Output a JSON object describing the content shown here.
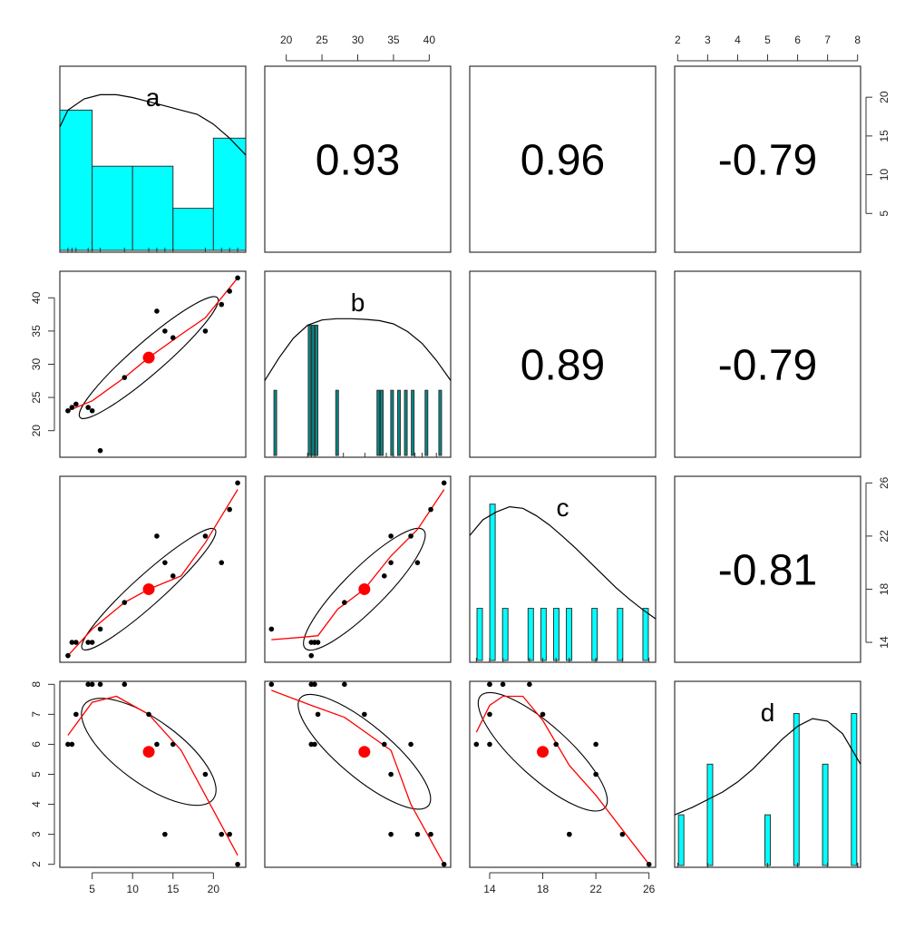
{
  "chart_data": {
    "type": "scatter",
    "variables": [
      "a",
      "b",
      "c",
      "d"
    ],
    "observations": {
      "a": [
        2,
        3,
        2.5,
        5,
        4.5,
        6,
        9,
        12,
        13,
        15,
        14,
        19,
        21,
        22,
        23
      ],
      "b": [
        23,
        24,
        23.5,
        23,
        23.5,
        17,
        28,
        31,
        38,
        34,
        35,
        35,
        39,
        41,
        43
      ],
      "c": [
        13,
        14,
        14,
        14,
        14,
        15,
        17,
        18,
        22,
        19,
        20,
        22,
        20,
        24,
        26
      ],
      "d": [
        6,
        7,
        6,
        8,
        8,
        8,
        8,
        7,
        6,
        6,
        3,
        5,
        3,
        3,
        2
      ]
    },
    "correlations": [
      {
        "pair": "a-b",
        "value": "0.93"
      },
      {
        "pair": "a-c",
        "value": "0.96"
      },
      {
        "pair": "a-d",
        "value": "-0.79"
      },
      {
        "pair": "b-c",
        "value": "0.89"
      },
      {
        "pair": "b-d",
        "value": "-0.79"
      },
      {
        "pair": "c-d",
        "value": "-0.81"
      }
    ],
    "histograms": {
      "a": {
        "bins": [
          [
            0,
            5,
            5
          ],
          [
            5,
            10,
            3
          ],
          [
            10,
            15,
            3
          ],
          [
            15,
            20,
            1.5
          ],
          [
            20,
            25,
            4
          ]
        ],
        "ymax": 6.5,
        "xlim": [
          1,
          24
        ]
      },
      "b": {
        "bars": [
          [
            18,
            1
          ],
          [
            23,
            2
          ],
          [
            23.5,
            2
          ],
          [
            24,
            2
          ],
          [
            27,
            1
          ],
          [
            33,
            1
          ],
          [
            33.5,
            1
          ],
          [
            35,
            1
          ],
          [
            36,
            1
          ],
          [
            37,
            1
          ],
          [
            38,
            1
          ],
          [
            40,
            1
          ],
          [
            42,
            1
          ]
        ],
        "ymax": 2.8,
        "xlim": [
          17,
          43
        ]
      },
      "c": {
        "bars": [
          [
            13,
            1
          ],
          [
            14,
            3
          ],
          [
            15,
            1
          ],
          [
            17,
            1
          ],
          [
            18,
            1
          ],
          [
            19,
            1
          ],
          [
            20,
            1
          ],
          [
            22,
            1
          ],
          [
            24,
            1
          ],
          [
            26,
            1
          ]
        ],
        "ymax": 3.5,
        "xlim": [
          12.5,
          26.5
        ]
      },
      "d": {
        "bars": [
          [
            2,
            1
          ],
          [
            3,
            2
          ],
          [
            5,
            1
          ],
          [
            6,
            3
          ],
          [
            7,
            2
          ],
          [
            8,
            3
          ]
        ],
        "ymax": 3.6,
        "xlim": [
          1.9,
          8.1
        ]
      }
    },
    "density_curves": {
      "a": [
        [
          1,
          4.4
        ],
        [
          2,
          5.0
        ],
        [
          4,
          5.4
        ],
        [
          6,
          5.55
        ],
        [
          8,
          5.55
        ],
        [
          10,
          5.45
        ],
        [
          12,
          5.3
        ],
        [
          14,
          5.15
        ],
        [
          16,
          5.0
        ],
        [
          18,
          4.85
        ],
        [
          20,
          4.5
        ],
        [
          22,
          4.0
        ],
        [
          24,
          3.4
        ]
      ],
      "b": [
        [
          17,
          1.15
        ],
        [
          19,
          1.5
        ],
        [
          21,
          1.8
        ],
        [
          23,
          2.0
        ],
        [
          25,
          2.08
        ],
        [
          27,
          2.1
        ],
        [
          29,
          2.1
        ],
        [
          31,
          2.09
        ],
        [
          33,
          2.07
        ],
        [
          35,
          2.02
        ],
        [
          37,
          1.9
        ],
        [
          39,
          1.72
        ],
        [
          41,
          1.46
        ],
        [
          43,
          1.15
        ]
      ],
      "c": [
        [
          12.5,
          2.4
        ],
        [
          13.5,
          2.7
        ],
        [
          14.5,
          2.85
        ],
        [
          15.5,
          2.95
        ],
        [
          16.5,
          2.92
        ],
        [
          17.5,
          2.78
        ],
        [
          18.5,
          2.6
        ],
        [
          19.5,
          2.38
        ],
        [
          20.5,
          2.15
        ],
        [
          21.5,
          1.9
        ],
        [
          22.5,
          1.65
        ],
        [
          23.5,
          1.4
        ],
        [
          24.5,
          1.18
        ],
        [
          25.5,
          0.98
        ],
        [
          26.5,
          0.8
        ]
      ],
      "d": [
        [
          1.9,
          1.0
        ],
        [
          2.5,
          1.15
        ],
        [
          3.0,
          1.3
        ],
        [
          3.5,
          1.45
        ],
        [
          4.0,
          1.65
        ],
        [
          4.5,
          1.9
        ],
        [
          5.0,
          2.2
        ],
        [
          5.5,
          2.5
        ],
        [
          6.0,
          2.75
        ],
        [
          6.5,
          2.9
        ],
        [
          7.0,
          2.85
        ],
        [
          7.5,
          2.6
        ],
        [
          8.1,
          2.0
        ]
      ]
    },
    "loess": {
      "a-b": [
        [
          2,
          23
        ],
        [
          5,
          24.5
        ],
        [
          9,
          28
        ],
        [
          12,
          31
        ],
        [
          16,
          34.5
        ],
        [
          19,
          37
        ],
        [
          23,
          43
        ]
      ],
      "a-c": [
        [
          2,
          13
        ],
        [
          5,
          15
        ],
        [
          9,
          17
        ],
        [
          12,
          18
        ],
        [
          16,
          19
        ],
        [
          19,
          21.5
        ],
        [
          23,
          25.5
        ]
      ],
      "a-d": [
        [
          2,
          6.3
        ],
        [
          5,
          7.4
        ],
        [
          8,
          7.6
        ],
        [
          12,
          7.0
        ],
        [
          16,
          5.8
        ],
        [
          19,
          4.3
        ],
        [
          23,
          2.3
        ]
      ],
      "b-c": [
        [
          17,
          14.2
        ],
        [
          22,
          14.4
        ],
        [
          24,
          14.5
        ],
        [
          27,
          16.5
        ],
        [
          31,
          18
        ],
        [
          35,
          20.5
        ],
        [
          39,
          22.5
        ],
        [
          43,
          25.5
        ]
      ],
      "b-d": [
        [
          17,
          7.8
        ],
        [
          23,
          7.3
        ],
        [
          28,
          6.9
        ],
        [
          35,
          5.8
        ],
        [
          38,
          4.0
        ],
        [
          43,
          2.0
        ]
      ],
      "c-d": [
        [
          13,
          6.4
        ],
        [
          14,
          7.3
        ],
        [
          15,
          7.6
        ],
        [
          16.5,
          7.6
        ],
        [
          18,
          6.8
        ],
        [
          20,
          5.3
        ],
        [
          22,
          4.3
        ],
        [
          26,
          2.0
        ]
      ]
    },
    "centroids": {
      "a": 12,
      "b": 31,
      "c": 18,
      "d": 5.75
    },
    "ellipses": {
      "a-b": {
        "cx": 12,
        "cy": 31,
        "angle_deg": -41,
        "rx_frac": 0.49,
        "ry_frac": 0.085
      },
      "a-c": {
        "cx": 12,
        "cy": 18,
        "angle_deg": -42,
        "rx_frac": 0.48,
        "ry_frac": 0.08
      },
      "a-d": {
        "cx": 12,
        "cy": 5.75,
        "angle_deg": 36,
        "rx_frac": 0.43,
        "ry_frac": 0.17
      },
      "b-c": {
        "cx": 31,
        "cy": 18,
        "angle_deg": -45,
        "rx_frac": 0.45,
        "ry_frac": 0.11
      },
      "b-d": {
        "cx": 31,
        "cy": 5.75,
        "angle_deg": 40,
        "rx_frac": 0.45,
        "ry_frac": 0.14
      },
      "c-d": {
        "cx": 18,
        "cy": 5.75,
        "angle_deg": 42,
        "rx_frac": 0.45,
        "ry_frac": 0.14
      }
    },
    "axes": {
      "a": {
        "lim": [
          1,
          24
        ],
        "ticks": [
          5,
          10,
          15,
          20
        ],
        "tick_side": "bottom"
      },
      "b": {
        "lim": [
          16,
          44
        ],
        "ticks": [
          20,
          25,
          30,
          35,
          40
        ],
        "tick_side": "left"
      },
      "b_top": {
        "lim": [
          17,
          43
        ],
        "ticks": [
          20,
          25,
          30,
          35,
          40
        ],
        "tick_side": "top"
      },
      "c": {
        "lim": [
          12.5,
          26.5
        ],
        "ticks": [
          14,
          18,
          22,
          26
        ],
        "tick_side": "bottom"
      },
      "c_right": {
        "lim": [
          12.5,
          26.5
        ],
        "ticks": [
          14,
          18,
          22,
          26
        ],
        "tick_side": "right"
      },
      "d": {
        "lim": [
          1.9,
          8.1
        ],
        "ticks": [
          2,
          3,
          4,
          5,
          6,
          7,
          8
        ],
        "tick_side": "left"
      },
      "d_top": {
        "lim": [
          1.9,
          8.1
        ],
        "ticks": [
          2,
          3,
          4,
          5,
          6,
          7,
          8
        ],
        "tick_side": "top"
      },
      "a_right": {
        "lim": [
          0,
          24
        ],
        "ticks": [
          5,
          10,
          15,
          20
        ],
        "tick_side": "right"
      }
    },
    "colors": {
      "hist_fill": "#00ffff",
      "hist_stroke": "#333333",
      "bar_fill_dark": "#008b8b",
      "loess": "#ff0000",
      "centroid": "#ff0000",
      "points": "#000000",
      "ellipse": "#000000",
      "density": "#000000"
    }
  }
}
